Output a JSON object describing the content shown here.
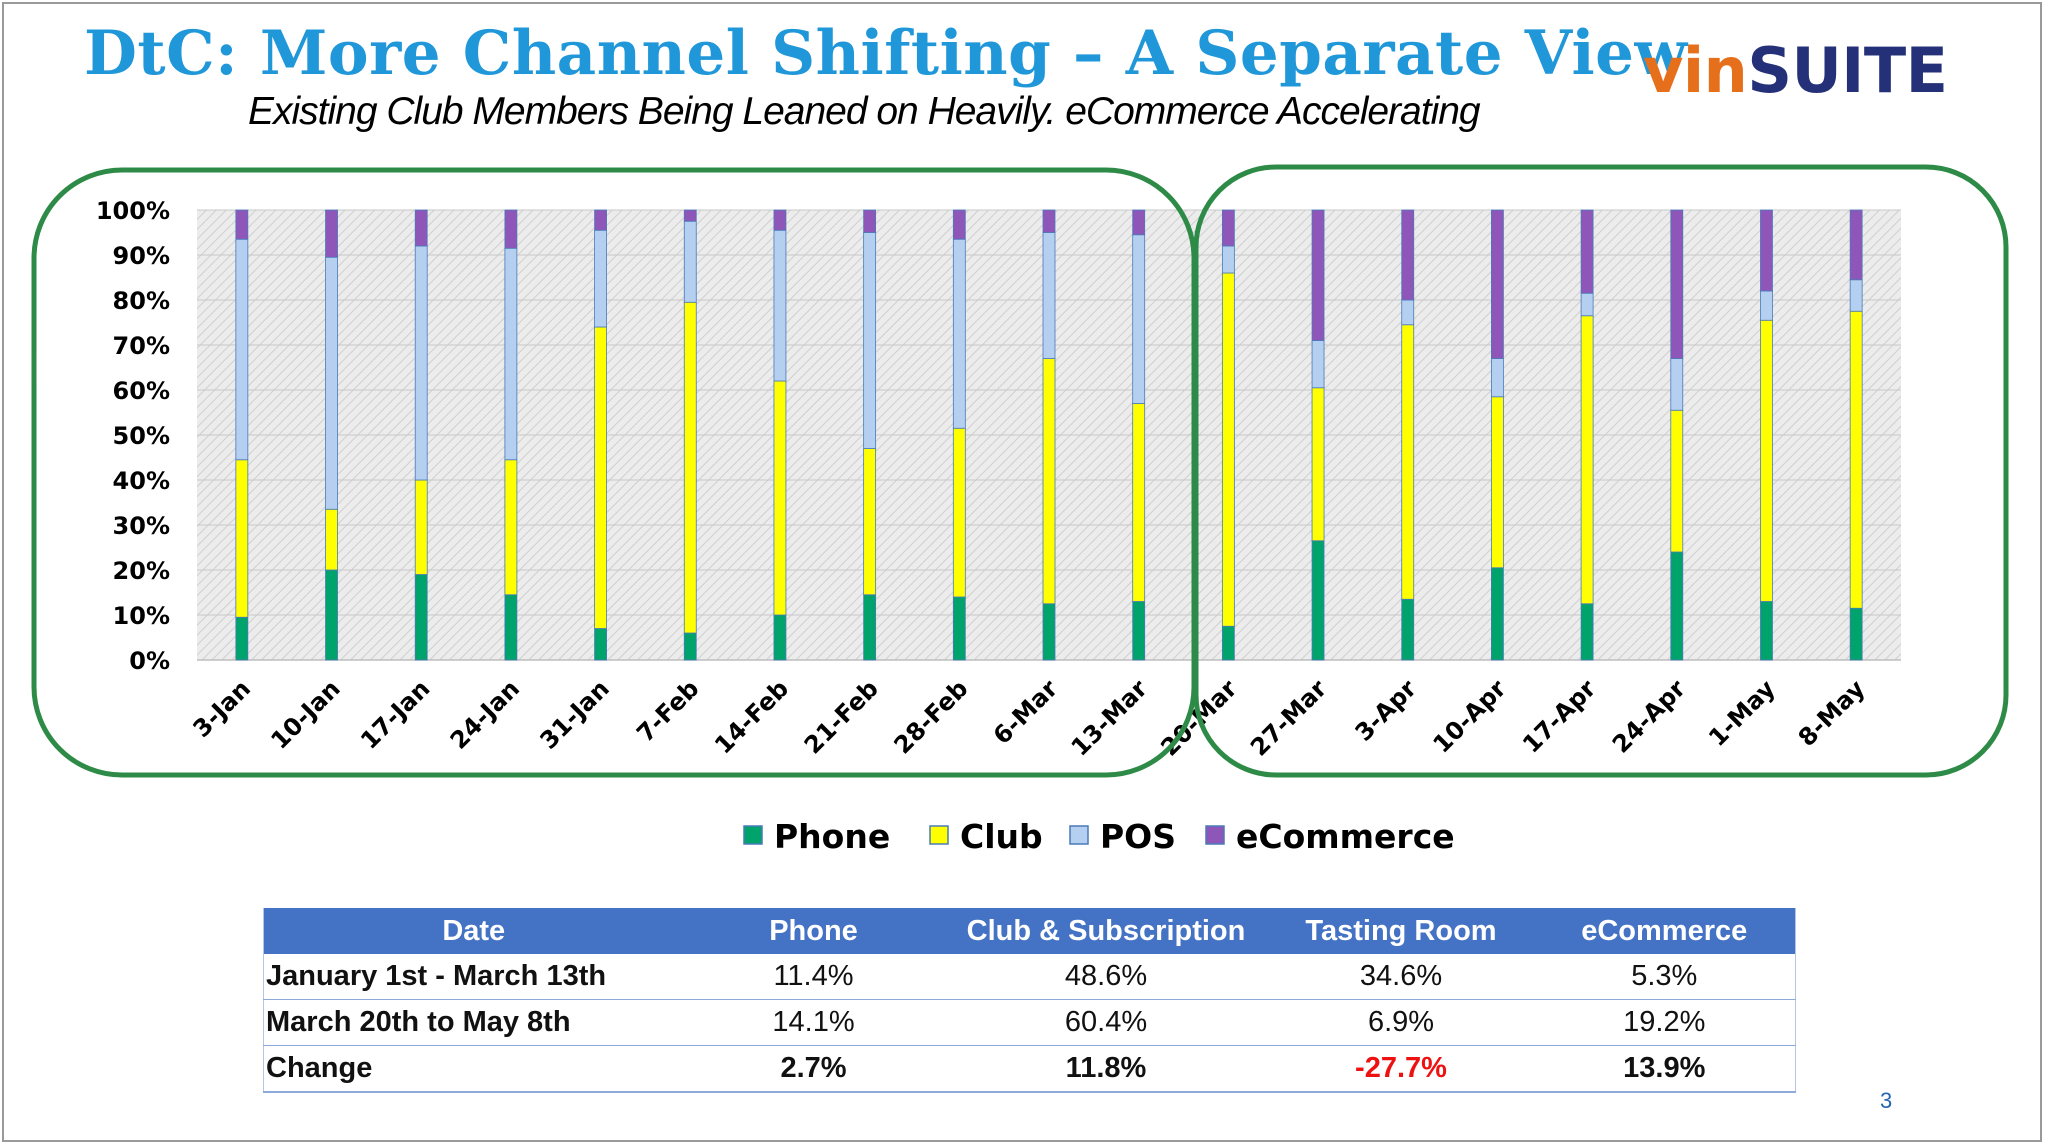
{
  "header": {
    "title": "DtC: More Channel Shifting – A Separate View",
    "subtitle": "Existing Club Members Being Leaned on Heavily. eCommerce Accelerating",
    "logo_part1": "vin",
    "logo_part2": "SUITE"
  },
  "page_number": "3",
  "colors": {
    "title": "#1f97d9",
    "phone": "#00a36c",
    "club": "#ffff00",
    "pos": "#b4cff0",
    "ecommerce": "#8e56b8",
    "highlight": "#2e8b47",
    "table_header": "#4472c4",
    "negative": "#ee1111"
  },
  "chart_data": {
    "type": "bar",
    "stacked": "100%",
    "categories": [
      "3-Jan",
      "10-Jan",
      "17-Jan",
      "24-Jan",
      "31-Jan",
      "7-Feb",
      "14-Feb",
      "21-Feb",
      "28-Feb",
      "6-Mar",
      "13-Mar",
      "20-Mar",
      "27-Mar",
      "3-Apr",
      "10-Apr",
      "17-Apr",
      "24-Apr",
      "1-May",
      "8-May"
    ],
    "series": [
      {
        "name": "Phone",
        "values": [
          9.5,
          20,
          19,
          14.5,
          7,
          6,
          10,
          14.5,
          14,
          12.5,
          13,
          7.5,
          26.5,
          13.5,
          20.5,
          12.5,
          24,
          13,
          11.5
        ]
      },
      {
        "name": "Club",
        "values": [
          35,
          13.5,
          21,
          30,
          67,
          73.5,
          52,
          32.5,
          37.5,
          54.5,
          44,
          78.5,
          34,
          61,
          38,
          64,
          31.5,
          62.5,
          66
        ]
      },
      {
        "name": "POS",
        "values": [
          49,
          56,
          52,
          47,
          21.5,
          18,
          33.5,
          48,
          42,
          28,
          37.5,
          6,
          10.5,
          5.5,
          8.5,
          5,
          11.5,
          6.5,
          7
        ]
      },
      {
        "name": "eCommerce",
        "values": [
          6.5,
          10.5,
          8,
          8.5,
          4.5,
          2.5,
          4.5,
          5,
          6.5,
          5,
          5.5,
          8,
          29,
          20,
          33,
          18.5,
          33,
          18,
          15.5
        ]
      }
    ],
    "yticks": [
      "0%",
      "10%",
      "20%",
      "30%",
      "40%",
      "50%",
      "60%",
      "70%",
      "80%",
      "90%",
      "100%"
    ],
    "ylim": [
      0,
      100
    ],
    "legend": [
      "Phone",
      "Club",
      "POS",
      "eCommerce"
    ],
    "legend_position": "bottom-center",
    "groups": [
      "3-Jan to 13-Mar",
      "20-Mar to 8-May"
    ]
  },
  "table": {
    "headers": [
      "Date",
      "Phone",
      "Club & Subscription",
      "Tasting Room",
      "eCommerce"
    ],
    "rows": [
      {
        "date": "January 1st  -  March 13th",
        "phone": "11.4%",
        "club": "48.6%",
        "tasting": "34.6%",
        "ecommerce": "5.3%"
      },
      {
        "date": "March 20th to May 8th",
        "phone": "14.1%",
        "club": "60.4%",
        "tasting": "6.9%",
        "ecommerce": "19.2%"
      },
      {
        "date": "Change",
        "phone": "2.7%",
        "club": "11.8%",
        "tasting": "-27.7%",
        "ecommerce": "13.9%"
      }
    ]
  }
}
